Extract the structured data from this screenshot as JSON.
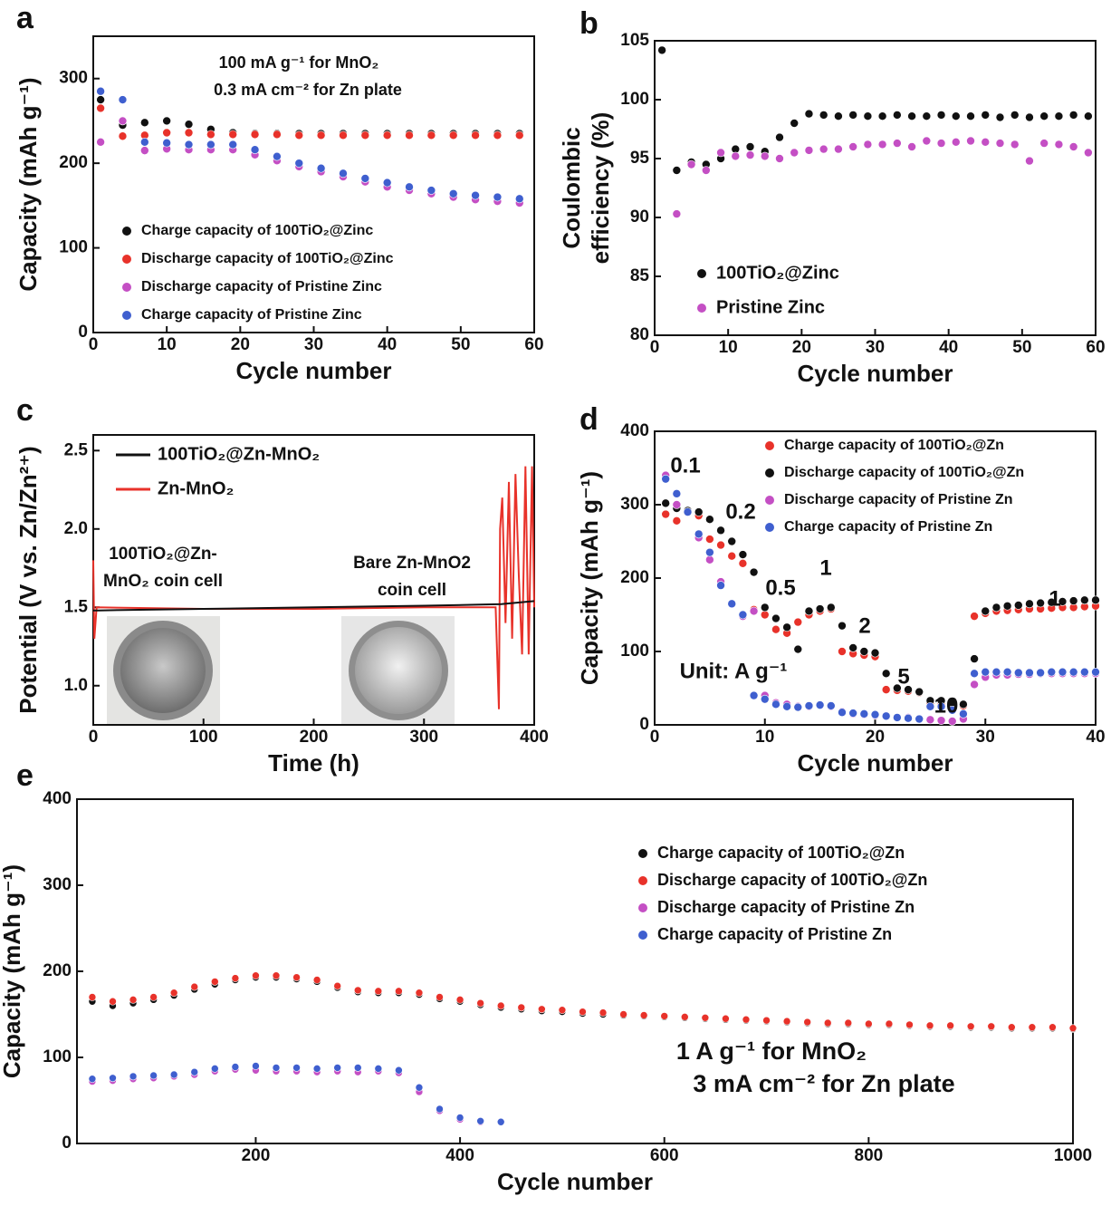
{
  "chart_data": [
    {
      "type": "scatter",
      "panel": "a",
      "xlabel": "Cycle number",
      "ylabel": "Capacity (mAh g⁻¹)",
      "xlim": [
        0,
        60
      ],
      "ylim": [
        0,
        350
      ],
      "xticks": [
        0,
        10,
        20,
        30,
        40,
        50,
        60
      ],
      "yticks": [
        0,
        100,
        200,
        300
      ],
      "annotations": [
        "100 mA g⁻¹ for MnO₂",
        "0.3 mA cm⁻² for Zn plate"
      ],
      "x": [
        1,
        4,
        7,
        10,
        13,
        16,
        19,
        22,
        25,
        28,
        31,
        34,
        37,
        40,
        43,
        46,
        49,
        52,
        55,
        58
      ],
      "series": [
        {
          "name": "Charge capacity of 100TiO₂@Zinc",
          "color": "#111111",
          "values": [
            275,
            245,
            248,
            250,
            246,
            240,
            236,
            235,
            235,
            235,
            235,
            235,
            235,
            235,
            235,
            235,
            235,
            235,
            235,
            235
          ]
        },
        {
          "name": "Discharge capacity of 100TiO₂@Zinc",
          "color": "#e8322a",
          "values": [
            265,
            232,
            233,
            236,
            236,
            234,
            234,
            234,
            234,
            233,
            233,
            233,
            233,
            233,
            233,
            233,
            233,
            233,
            233,
            233
          ]
        },
        {
          "name": "Discharge capacity of Pristine Zinc",
          "color": "#c44fc4",
          "values": [
            225,
            250,
            215,
            217,
            216,
            216,
            216,
            210,
            203,
            196,
            190,
            184,
            178,
            172,
            168,
            164,
            160,
            157,
            155,
            153
          ]
        },
        {
          "name": "Charge capacity of Pristine Zinc",
          "color": "#3f5fcf",
          "values": [
            285,
            275,
            225,
            224,
            222,
            222,
            222,
            216,
            208,
            200,
            194,
            188,
            182,
            177,
            172,
            168,
            164,
            162,
            160,
            158
          ]
        }
      ]
    },
    {
      "type": "scatter",
      "panel": "b",
      "xlabel": "Cycle number",
      "ylabel": [
        "Coulombic",
        "efficiency (%)"
      ],
      "xlim": [
        0,
        60
      ],
      "ylim": [
        80,
        105
      ],
      "xticks": [
        0,
        10,
        20,
        30,
        40,
        50,
        60
      ],
      "yticks": [
        80,
        85,
        90,
        95,
        100,
        105
      ],
      "x": [
        1,
        3,
        5,
        7,
        9,
        11,
        13,
        15,
        17,
        19,
        21,
        23,
        25,
        27,
        29,
        31,
        33,
        35,
        37,
        39,
        41,
        43,
        45,
        47,
        49,
        51,
        53,
        55,
        57,
        59
      ],
      "series": [
        {
          "name": "100TiO₂@Zinc",
          "color": "#111111",
          "values": [
            104.2,
            94,
            94.7,
            94.5,
            95,
            95.8,
            96,
            95.6,
            96.8,
            98,
            98.8,
            98.7,
            98.6,
            98.7,
            98.6,
            98.6,
            98.7,
            98.6,
            98.6,
            98.7,
            98.6,
            98.6,
            98.7,
            98.5,
            98.7,
            98.5,
            98.6,
            98.6,
            98.7,
            98.6
          ]
        },
        {
          "name": "Pristine Zinc",
          "color": "#c44fc4",
          "values": [
            null,
            90.3,
            94.5,
            94,
            95.5,
            95.2,
            95.3,
            95.2,
            95,
            95.5,
            95.7,
            95.8,
            95.8,
            96,
            96.2,
            96.2,
            96.3,
            96,
            96.5,
            96.3,
            96.4,
            96.5,
            96.4,
            96.3,
            96.2,
            94.8,
            96.3,
            96.2,
            96,
            95.5
          ]
        }
      ]
    },
    {
      "type": "line",
      "panel": "c",
      "xlabel": "Time (h)",
      "ylabel": "Potential (V vs. Zn/Zn²⁺)",
      "xlim": [
        0,
        400
      ],
      "ylim": [
        0.75,
        2.6
      ],
      "xticks": [
        0,
        100,
        200,
        300,
        400
      ],
      "yticks": [
        {
          "value": 1,
          "label": "1.0"
        },
        1.5,
        {
          "value": 2,
          "label": "2.0"
        },
        2.5
      ],
      "annotations": [
        "100TiO₂@Zn-",
        "MnO₂ coin cell",
        "Bare Zn-MnO2",
        "coin cell"
      ],
      "series": [
        {
          "name": "100TiO₂@Zn-MnO₂",
          "color": "#111111",
          "x": [
            0,
            5,
            100,
            200,
            300,
            370,
            400
          ],
          "values": [
            1.48,
            1.48,
            1.49,
            1.5,
            1.51,
            1.52,
            1.54
          ]
        },
        {
          "name": "Zn-MnO₂",
          "color": "#e8322a",
          "x": [
            0,
            1,
            3,
            100,
            200,
            300,
            365,
            368,
            369,
            371,
            374,
            377,
            380,
            383,
            386,
            389,
            392,
            395,
            398,
            400
          ],
          "values": [
            1.8,
            1.3,
            1.5,
            1.49,
            1.49,
            1.5,
            1.5,
            0.85,
            2.0,
            2.2,
            1.4,
            2.3,
            1.3,
            2.35,
            1.7,
            1.2,
            2.4,
            1.2,
            2.4,
            1.5
          ]
        }
      ]
    },
    {
      "type": "scatter",
      "panel": "d",
      "xlabel": "Cycle number",
      "ylabel": "Capacity (mAh g⁻¹)",
      "xlim": [
        0,
        40
      ],
      "ylim": [
        0,
        400
      ],
      "xticks": [
        0,
        10,
        20,
        30,
        40
      ],
      "yticks": [
        0,
        100,
        200,
        300,
        400
      ],
      "annotations": [
        "0.1",
        "0.2",
        "0.5",
        "1",
        "2",
        "5",
        "10",
        "1",
        "Unit: A g⁻¹"
      ],
      "x": [
        1,
        2,
        3,
        4,
        5,
        6,
        7,
        8,
        9,
        10,
        11,
        12,
        13,
        14,
        15,
        16,
        17,
        18,
        19,
        20,
        21,
        22,
        23,
        24,
        25,
        26,
        27,
        28,
        29,
        30,
        31,
        32,
        33,
        34,
        35,
        36,
        37,
        38,
        39,
        40
      ],
      "series": [
        {
          "name": "Charge capacity of 100TiO₂@Zn",
          "color": "#e8322a",
          "values": [
            287,
            278,
            290,
            285,
            253,
            245,
            230,
            220,
            157,
            150,
            130,
            125,
            140,
            150,
            155,
            158,
            100,
            97,
            95,
            93,
            48,
            47,
            46,
            44,
            30,
            28,
            27,
            26,
            148,
            152,
            155,
            156,
            157,
            158,
            158,
            159,
            160,
            160,
            161,
            162
          ]
        },
        {
          "name": "Discharge capacity of 100TiO₂@Zn",
          "color": "#111111",
          "values": [
            302,
            295,
            292,
            290,
            280,
            265,
            250,
            232,
            208,
            160,
            145,
            133,
            103,
            155,
            158,
            160,
            135,
            105,
            100,
            98,
            70,
            50,
            48,
            45,
            33,
            33,
            30,
            28,
            90,
            155,
            160,
            162,
            163,
            165,
            166,
            167,
            168,
            169,
            170,
            170
          ]
        },
        {
          "name": "Discharge capacity of Pristine Zn",
          "color": "#c44fc4",
          "values": [
            340,
            300,
            290,
            255,
            225,
            195,
            165,
            148,
            155,
            40,
            30,
            28,
            25,
            25,
            27,
            25,
            18,
            15,
            14,
            13,
            12,
            10,
            10,
            8,
            7,
            6,
            5,
            8,
            55,
            65,
            68,
            68,
            69,
            69,
            70,
            70,
            70,
            70,
            70,
            70
          ]
        },
        {
          "name": "Charge capacity of Pristine Zn",
          "color": "#3f5fcf",
          "values": [
            335,
            315,
            290,
            260,
            235,
            190,
            165,
            150,
            40,
            35,
            28,
            25,
            24,
            26,
            27,
            26,
            17,
            16,
            15,
            14,
            12,
            10,
            9,
            8,
            25,
            25,
            20,
            15,
            70,
            72,
            72,
            72,
            71,
            71,
            71,
            72,
            72,
            72,
            72,
            72
          ]
        }
      ]
    },
    {
      "type": "scatter",
      "panel": "e",
      "xlabel": "Cycle number",
      "ylabel": "Capacity (mAh g⁻¹)",
      "xlim": [
        25,
        1000
      ],
      "ylim": [
        0,
        400
      ],
      "xticks": [
        200,
        400,
        600,
        800,
        1000
      ],
      "yticks": [
        0,
        100,
        200,
        300,
        400
      ],
      "annotations": [
        "1 A g⁻¹ for MnO₂",
        "3 mA cm⁻² for Zn plate"
      ],
      "x": [
        40,
        60,
        80,
        100,
        120,
        140,
        160,
        180,
        200,
        220,
        240,
        260,
        280,
        300,
        320,
        340,
        360,
        380,
        400,
        420,
        440,
        460,
        480,
        500,
        520,
        540,
        560,
        580,
        600,
        620,
        640,
        660,
        680,
        700,
        720,
        740,
        760,
        780,
        800,
        820,
        840,
        860,
        880,
        900,
        920,
        940,
        960,
        980,
        1000
      ],
      "series": [
        {
          "name": "Charge capacity of 100TiO₂@Zn",
          "color": "#111111",
          "values": [
            165,
            160,
            163,
            167,
            172,
            179,
            185,
            190,
            193,
            193,
            191,
            188,
            181,
            176,
            175,
            175,
            173,
            168,
            165,
            161,
            158,
            156,
            154,
            153,
            151,
            150,
            149,
            148,
            147,
            146,
            145,
            144,
            143,
            142,
            141,
            140,
            139,
            139,
            138,
            138,
            137,
            136,
            136,
            135,
            135,
            134,
            134,
            134,
            133
          ]
        },
        {
          "name": "Discharge capacity of 100TiO₂@Zn",
          "color": "#e8322a",
          "values": [
            170,
            165,
            167,
            170,
            175,
            182,
            188,
            192,
            195,
            195,
            193,
            190,
            183,
            178,
            177,
            177,
            175,
            170,
            167,
            163,
            160,
            158,
            156,
            155,
            153,
            152,
            150,
            149,
            148,
            147,
            146,
            145,
            144,
            143,
            142,
            141,
            140,
            140,
            139,
            139,
            138,
            137,
            137,
            136,
            136,
            135,
            135,
            135,
            134
          ]
        },
        {
          "name": "Discharge capacity of Pristine Zn",
          "color": "#c44fc4",
          "values": [
            72,
            73,
            75,
            76,
            78,
            80,
            84,
            86,
            85,
            84,
            84,
            83,
            84,
            83,
            84,
            82,
            60,
            38,
            28,
            25,
            25,
            null,
            null,
            null,
            null,
            null,
            null,
            null,
            null,
            null,
            null,
            null,
            null,
            null,
            null,
            null,
            null,
            null,
            null,
            null,
            null,
            null,
            null,
            null,
            null,
            null,
            null,
            null,
            null
          ]
        },
        {
          "name": "Charge capacity of Pristine Zn",
          "color": "#3f5fcf",
          "values": [
            75,
            76,
            78,
            79,
            80,
            83,
            87,
            89,
            90,
            88,
            88,
            87,
            88,
            88,
            87,
            85,
            65,
            40,
            30,
            26,
            25,
            null,
            null,
            null,
            null,
            null,
            null,
            null,
            null,
            null,
            null,
            null,
            null,
            null,
            null,
            null,
            null,
            null,
            null,
            null,
            null,
            null,
            null,
            null,
            null,
            null,
            null,
            null,
            null
          ]
        }
      ]
    }
  ]
}
